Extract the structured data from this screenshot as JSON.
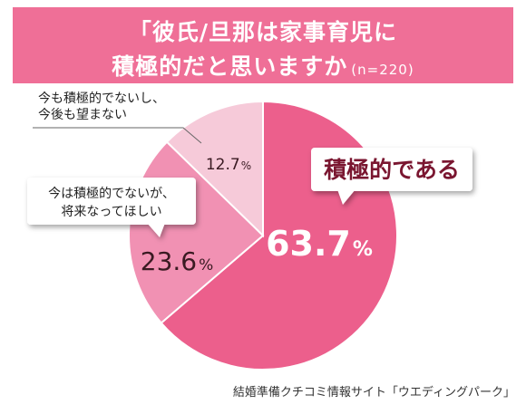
{
  "header": {
    "title_line1": "「彼氏/旦那は家事育児に",
    "title_line2": "積極的だと思いますか",
    "sample_size": "(n=220)"
  },
  "chart_data": {
    "type": "pie",
    "title": "「彼氏/旦那は家事育児に積極的だと思いますか",
    "unit": "%",
    "slices": [
      {
        "label": "積極的である",
        "value": 63.7,
        "display": "63.7",
        "color": "#ec5f8c"
      },
      {
        "label": "今は積極的でないが、将来なってほしい",
        "label_lines": [
          "今は積極的でないが、",
          "将来なってほしい"
        ],
        "value": 23.6,
        "display": "23.6",
        "color": "#f191b3"
      },
      {
        "label": "今も積極的でないし、今後も望まない",
        "label_lines": [
          "今も積極的でないし、",
          "今後も望まない"
        ],
        "value": 12.7,
        "display": "12.7",
        "color": "#f6cad9"
      }
    ]
  },
  "source": "結婚準備クチコミ情報サイト「ウエディングパーク」",
  "colors": {
    "header_bg": "#ef6f97",
    "callout_text": "#7a1630",
    "value_text_dark": "#3a1a22"
  }
}
